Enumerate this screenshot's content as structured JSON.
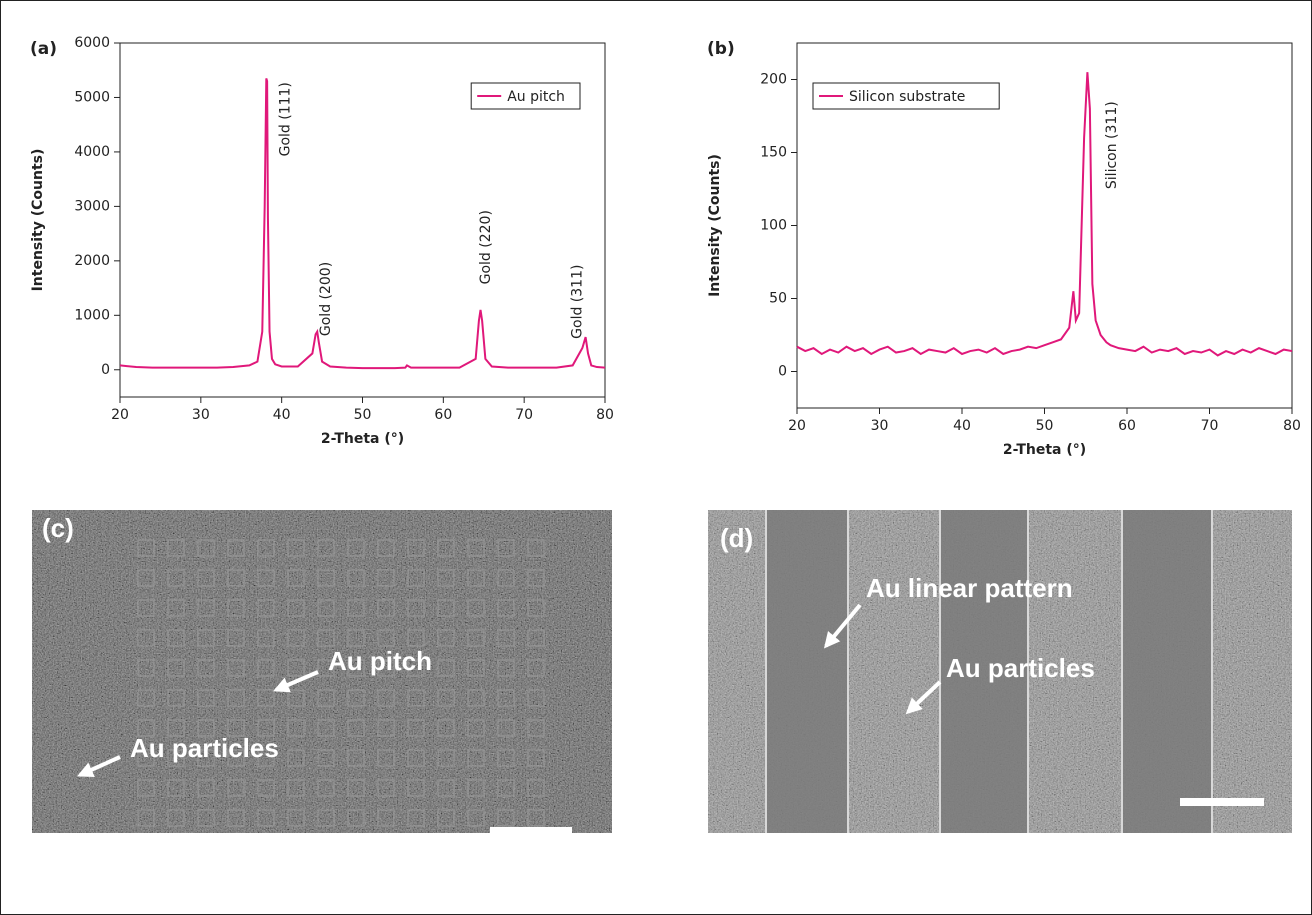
{
  "chart_data": [
    {
      "type": "line",
      "panel": "(a)",
      "x_label": "2-Theta (°)",
      "y_label": "Intensity (Counts)",
      "x": [
        20,
        22,
        24,
        26,
        28,
        30,
        32,
        34,
        36,
        37,
        37.6,
        37.9,
        38.1,
        38.2,
        38.3,
        38.5,
        38.8,
        39.2,
        40,
        42,
        43.8,
        44.2,
        44.4,
        44.6,
        45,
        46,
        48,
        50,
        52,
        54,
        55.3,
        55.5,
        56,
        58,
        60,
        62,
        64,
        64.4,
        64.6,
        64.8,
        65.2,
        66,
        68,
        70,
        72,
        74,
        76,
        77.2,
        77.6,
        77.9,
        78.3,
        79,
        80
      ],
      "series": [
        {
          "name": "Au pitch",
          "color": "#e0187a",
          "values": [
            80,
            50,
            40,
            40,
            40,
            40,
            40,
            50,
            80,
            150,
            700,
            3000,
            5350,
            5300,
            2800,
            700,
            200,
            100,
            60,
            60,
            300,
            650,
            700,
            500,
            150,
            60,
            40,
            30,
            30,
            30,
            40,
            80,
            40,
            40,
            40,
            40,
            200,
            900,
            1100,
            900,
            200,
            60,
            40,
            40,
            40,
            40,
            80,
            400,
            600,
            300,
            80,
            50,
            40
          ]
        }
      ],
      "xlim": [
        20,
        80
      ],
      "xticks": [
        20,
        30,
        40,
        50,
        60,
        70,
        80
      ],
      "ylim": [
        -500,
        6000
      ],
      "yticks": [
        0,
        1000,
        2000,
        3000,
        4000,
        5000,
        6000
      ],
      "legend": "upper right",
      "annotations": [
        "Gold (111)",
        "Gold (200)",
        "Gold (220)",
        "Gold (311)"
      ]
    },
    {
      "type": "line",
      "panel": "(b)",
      "x_label": "2-Theta (°)",
      "y_label": "Intensity (Counts)",
      "x": [
        20,
        21,
        22,
        23,
        24,
        25,
        26,
        27,
        28,
        29,
        30,
        31,
        32,
        33,
        34,
        35,
        36,
        37,
        38,
        39,
        40,
        41,
        42,
        43,
        44,
        45,
        46,
        47,
        48,
        49,
        50,
        51,
        52,
        53,
        53.5,
        53.8,
        54.2,
        54.8,
        55.2,
        55.5,
        55.8,
        56.2,
        56.8,
        57.5,
        58,
        59,
        60,
        61,
        62,
        63,
        64,
        65,
        66,
        67,
        68,
        69,
        70,
        71,
        72,
        73,
        74,
        75,
        76,
        77,
        78,
        79,
        80
      ],
      "series": [
        {
          "name": "Silicon substrate",
          "color": "#e0187a",
          "values": [
            17,
            14,
            16,
            12,
            15,
            13,
            17,
            14,
            16,
            12,
            15,
            17,
            13,
            14,
            16,
            12,
            15,
            14,
            13,
            16,
            12,
            14,
            15,
            13,
            16,
            12,
            14,
            15,
            17,
            16,
            18,
            20,
            22,
            30,
            55,
            35,
            40,
            160,
            205,
            180,
            60,
            35,
            25,
            20,
            18,
            16,
            15,
            14,
            17,
            13,
            15,
            14,
            16,
            12,
            14,
            13,
            15,
            11,
            14,
            12,
            15,
            13,
            16,
            14,
            12,
            15,
            14
          ]
        }
      ],
      "xlim": [
        20,
        80
      ],
      "xticks": [
        20,
        30,
        40,
        50,
        60,
        70,
        80
      ],
      "ylim": [
        -25,
        225
      ],
      "yticks": [
        0,
        50,
        100,
        150,
        200
      ],
      "legend": "upper left",
      "annotations": [
        "Silicon (311)"
      ]
    }
  ],
  "images": [
    {
      "label": "(c)",
      "annotations": [
        "Au pitch",
        "Au particles"
      ]
    },
    {
      "label": "(d)",
      "annotations": [
        "Au linear pattern",
        "Au particles"
      ]
    }
  ]
}
